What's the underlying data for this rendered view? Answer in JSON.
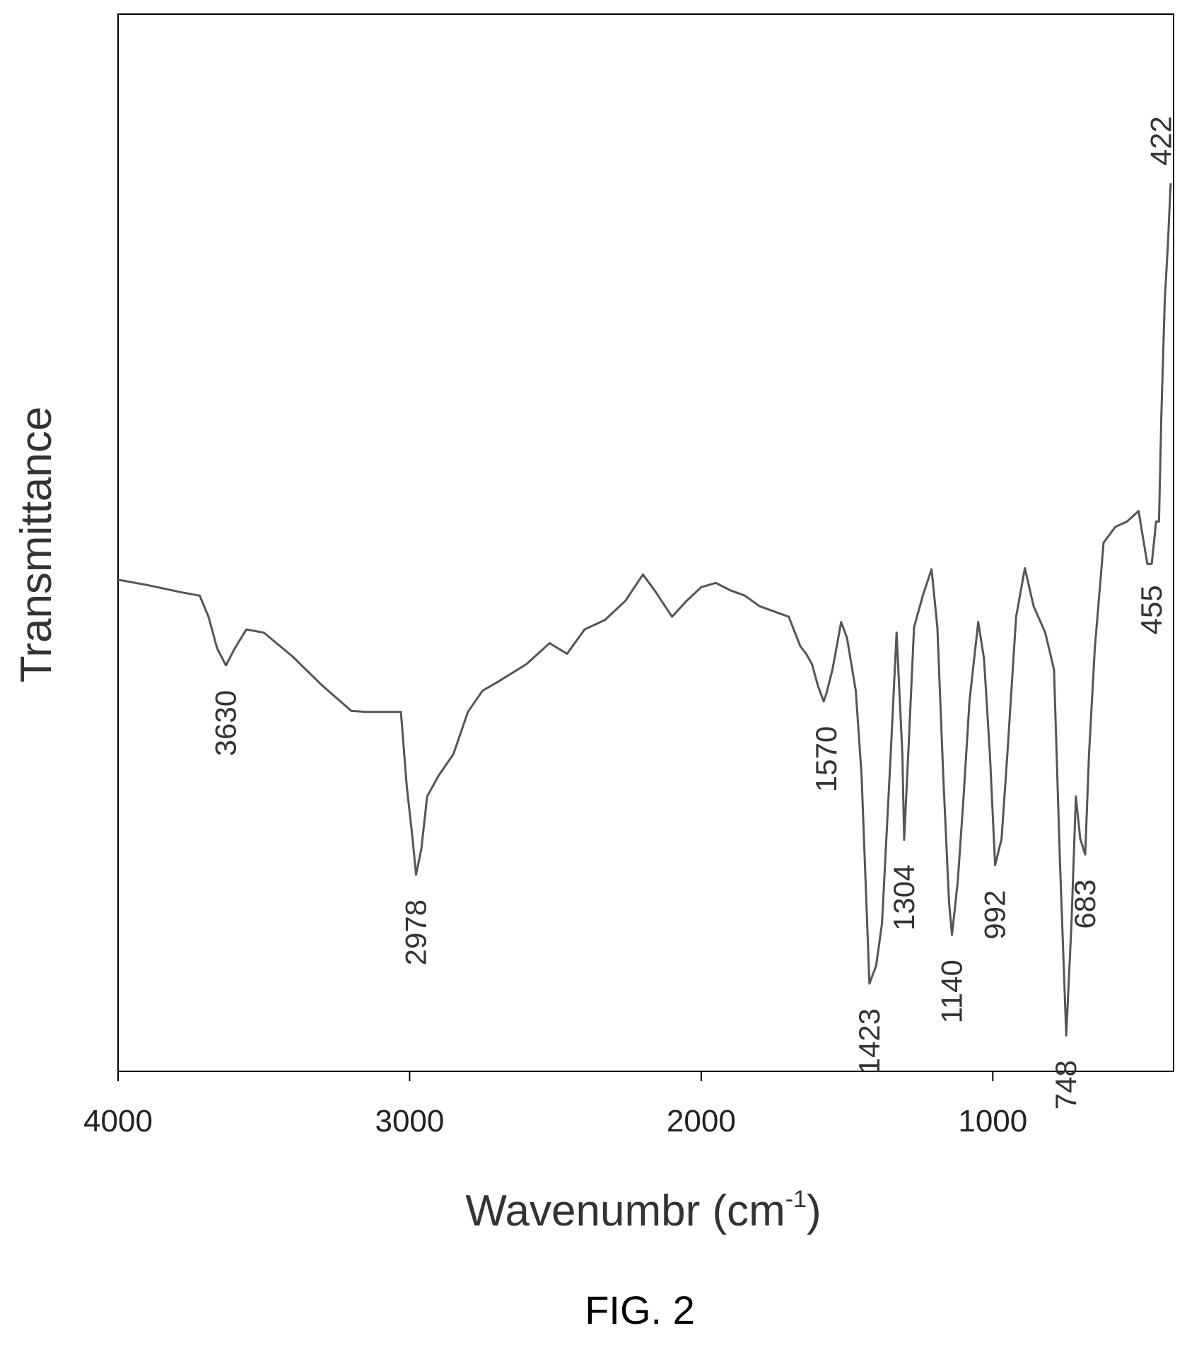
{
  "caption": "FIG. 2",
  "chart_data": {
    "type": "line",
    "title": "",
    "xlabel": "Wavenumbr (cm",
    "xlabel_superscript": "-1",
    "xlabel_close": ")",
    "ylabel": "Transmittance",
    "xlim": [
      4000,
      380
    ],
    "x_reversed": true,
    "xticks": [
      "4000",
      "3000",
      "2000",
      "1000"
    ],
    "xtick_values": [
      4000,
      3000,
      2000,
      1000
    ],
    "yticks": [],
    "grid": false,
    "legend": "none",
    "line_color": "#555555",
    "series": [
      {
        "x": [
          4000,
          3900,
          3780,
          3720,
          3690,
          3660,
          3630,
          3600,
          3560,
          3500,
          3400,
          3300,
          3200,
          3150,
          3030,
          3010,
          2990,
          2978,
          2960,
          2940,
          2900,
          2850,
          2800,
          2750,
          2700,
          2600,
          2520,
          2460,
          2400,
          2330,
          2260,
          2200,
          2160,
          2100,
          2050,
          2000,
          1950,
          1900,
          1850,
          1800,
          1750,
          1700,
          1660,
          1640,
          1620,
          1600,
          1580,
          1570,
          1550,
          1520,
          1500,
          1470,
          1450,
          1423,
          1400,
          1380,
          1350,
          1330,
          1310,
          1304,
          1290,
          1270,
          1240,
          1210,
          1190,
          1170,
          1150,
          1140,
          1120,
          1100,
          1080,
          1050,
          1030,
          1010,
          992,
          970,
          950,
          920,
          890,
          860,
          820,
          790,
          770,
          748,
          730,
          715,
          700,
          683,
          670,
          650,
          620,
          580,
          540,
          500,
          470,
          455,
          440,
          430,
          422,
          410,
          400,
          390
        ],
        "y": [
          46.5,
          46.0,
          45.3,
          45.0,
          43.0,
          40.0,
          38.4,
          40.0,
          41.8,
          41.5,
          39.2,
          36.5,
          34.1,
          34.0,
          34.0,
          27.0,
          22.0,
          18.6,
          21.0,
          26.0,
          28.0,
          30.0,
          34.0,
          36.0,
          36.8,
          38.5,
          40.5,
          39.5,
          41.8,
          42.7,
          44.5,
          47.0,
          45.5,
          43.0,
          44.5,
          45.8,
          46.2,
          45.5,
          45.0,
          44.0,
          43.5,
          43.0,
          40.2,
          39.5,
          38.5,
          36.5,
          35.0,
          35.8,
          38.0,
          42.5,
          41.0,
          36.0,
          28.0,
          8.3,
          10.0,
          14.0,
          30.0,
          41.5,
          30.0,
          21.9,
          30.0,
          42.0,
          45.0,
          47.5,
          42.0,
          28.0,
          16.0,
          12.9,
          18.0,
          26.0,
          35.0,
          42.5,
          39.0,
          30.0,
          19.5,
          22.0,
          30.0,
          43.0,
          47.6,
          44.0,
          41.5,
          38.0,
          20.0,
          3.4,
          14.0,
          26.0,
          22.0,
          20.5,
          30.0,
          40.0,
          50.0,
          51.5,
          52.0,
          53.0,
          48.0,
          48.0,
          52.0,
          52.0,
          62.0,
          73.0,
          78.0,
          84.0
        ]
      }
    ],
    "ylim": [
      0,
      100
    ],
    "peak_labels": [
      {
        "text": "3630",
        "x": 3630,
        "y": 38.4
      },
      {
        "text": "2978",
        "x": 2978,
        "y": 18.6
      },
      {
        "text": "1570",
        "x": 1570,
        "y": 35.0
      },
      {
        "text": "1423",
        "x": 1423,
        "y": 8.3
      },
      {
        "text": "1304",
        "x": 1304,
        "y": 21.9
      },
      {
        "text": "1140",
        "x": 1140,
        "y": 12.9
      },
      {
        "text": "992",
        "x": 992,
        "y": 19.5
      },
      {
        "text": "748",
        "x": 748,
        "y": 3.4
      },
      {
        "text": "683",
        "x": 683,
        "y": 20.5
      },
      {
        "text": "455",
        "x": 455,
        "y": 48.0
      },
      {
        "text": "422",
        "x": 422,
        "y": 84.0
      }
    ]
  }
}
